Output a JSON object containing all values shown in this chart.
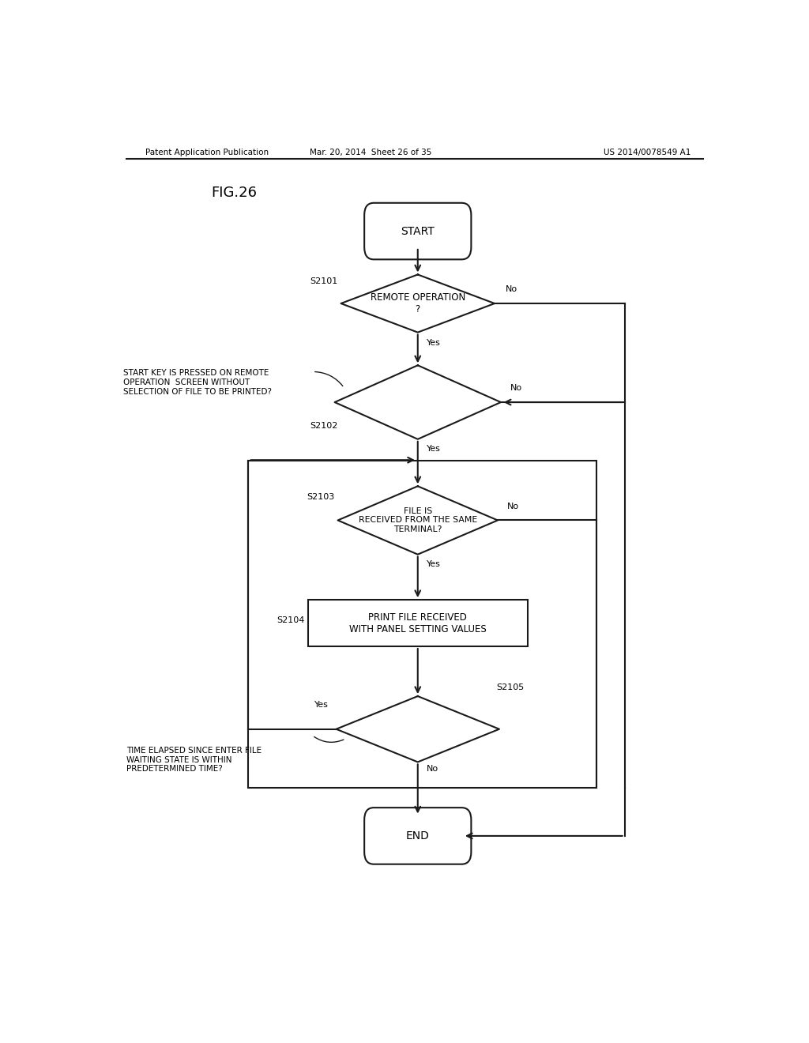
{
  "title": "FIG.26",
  "header_left": "Patent Application Publication",
  "header_mid": "Mar. 20, 2014  Sheet 26 of 35",
  "header_right": "US 2014/0078549 A1",
  "bg_color": "#ffffff",
  "line_color": "#1a1a1a",
  "start_label": "START",
  "end_label": "END",
  "s2101_label": "REMOTE OPERATION\n?",
  "s2101_step": "S2101",
  "s2102_step": "S2102",
  "s2102_side_label": "START KEY IS PRESSED ON REMOTE\nOPERATION  SCREEN WITHOUT\nSELECTION OF FILE TO BE PRINTED?",
  "s2103_label": "FILE IS\nRECEIVED FROM THE SAME\nTERMINAL?",
  "s2103_step": "S2103",
  "s2104_label": "PRINT FILE RECEIVED\nWITH PANEL SETTING VALUES",
  "s2104_step": "S2104",
  "s2105_step": "S2105",
  "s2105_side_label": "TIME ELAPSED SINCE ENTER FILE\nWAITING STATE IS WITHIN\nPREDETERMINED TIME?",
  "yes_label": "Yes",
  "no_label": "No"
}
